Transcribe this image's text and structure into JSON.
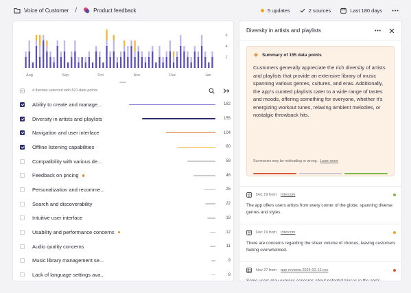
{
  "breadcrumb": {
    "workspace": "Voice of Customer",
    "separator": "/",
    "project": "Product feedback"
  },
  "header": {
    "updates_label": "5 updates",
    "sources_label": "2 sources",
    "range_label": "Last 180 days",
    "update_dot_color": "#f0a51e"
  },
  "chart_data": {
    "type": "bar",
    "x_tick_labels": [
      "Aug",
      "Sep",
      "Oct",
      "Nov",
      "Dec",
      "Jan"
    ],
    "y_tick_labels": [
      "6",
      "4",
      "2"
    ],
    "ylim": [
      0,
      7
    ],
    "series_colors": [
      "#5a4fb8",
      "#c0b6ef",
      "#f3b43a",
      "#e07a3a"
    ],
    "bars": [
      [
        2,
        1,
        0,
        0
      ],
      [
        3,
        2,
        0,
        0
      ],
      [
        1,
        0,
        0,
        0
      ],
      [
        4,
        1,
        1,
        0
      ],
      [
        2,
        2,
        2,
        0
      ],
      [
        5,
        1,
        0,
        0
      ],
      [
        3,
        1,
        1,
        0
      ],
      [
        2,
        1,
        0,
        0
      ],
      [
        1,
        1,
        0,
        0
      ],
      [
        4,
        1,
        0,
        0
      ],
      [
        2,
        1,
        0,
        0
      ],
      [
        3,
        2,
        0,
        0
      ],
      [
        1,
        0,
        0,
        0
      ],
      [
        2,
        1,
        0,
        0
      ],
      [
        3,
        2,
        0,
        0
      ],
      [
        1,
        1,
        0,
        0
      ],
      [
        2,
        0,
        0,
        0
      ],
      [
        1,
        1,
        0,
        0
      ],
      [
        2,
        1,
        0,
        0
      ],
      [
        1,
        0,
        0,
        0
      ],
      [
        3,
        1,
        0,
        0
      ],
      [
        2,
        1,
        0,
        0
      ],
      [
        1,
        0,
        0,
        0
      ],
      [
        4,
        1,
        2,
        0
      ],
      [
        2,
        1,
        0,
        0
      ],
      [
        3,
        2,
        1,
        0
      ],
      [
        1,
        1,
        0,
        0
      ],
      [
        2,
        1,
        0,
        0
      ],
      [
        3,
        1,
        1,
        0
      ],
      [
        2,
        2,
        0,
        0
      ],
      [
        4,
        1,
        0,
        0
      ],
      [
        2,
        1,
        2,
        0
      ],
      [
        3,
        1,
        0,
        0
      ],
      [
        2,
        1,
        0,
        0
      ],
      [
        1,
        1,
        0,
        0
      ],
      [
        2,
        1,
        0,
        0
      ],
      [
        3,
        1,
        0,
        0
      ],
      [
        1,
        0,
        0,
        0
      ],
      [
        2,
        2,
        0,
        0
      ],
      [
        1,
        1,
        0,
        0
      ],
      [
        2,
        1,
        0,
        0
      ],
      [
        3,
        2,
        0,
        0
      ],
      [
        1,
        1,
        1,
        0
      ],
      [
        2,
        1,
        0,
        0
      ],
      [
        4,
        2,
        0,
        0
      ],
      [
        3,
        1,
        0,
        0
      ],
      [
        2,
        1,
        0,
        0
      ],
      [
        1,
        1,
        0,
        0
      ],
      [
        3,
        1,
        0,
        0
      ],
      [
        2,
        1,
        0,
        0
      ],
      [
        4,
        2,
        0,
        0
      ],
      [
        2,
        1,
        0,
        0
      ],
      [
        1,
        0,
        0,
        0
      ],
      [
        2,
        1,
        0,
        0
      ]
    ]
  },
  "themes": {
    "selected_summary": "4 themes selected with 521 data points",
    "items": [
      {
        "label": "Ability to create and manage...",
        "count": "182",
        "value": 182,
        "checked": true,
        "flag": false,
        "bar_color": "#8a7fd8"
      },
      {
        "label": "Diversity in artists and playlists",
        "count": "155",
        "value": 155,
        "checked": true,
        "flag": false,
        "bar_color": "#2a2a70"
      },
      {
        "label": "Navigation and user interface",
        "count": "104",
        "value": 104,
        "checked": true,
        "flag": false,
        "bar_color": "#e07a3a"
      },
      {
        "label": "Offline listening capabilities",
        "count": "80",
        "value": 80,
        "checked": true,
        "flag": false,
        "bar_color": "#f3b43a"
      },
      {
        "label": "Compatibility with various de...",
        "count": "59",
        "value": 59,
        "checked": false,
        "flag": false,
        "bar_color": "#c9c9cf"
      },
      {
        "label": "Feedback on pricing",
        "count": "46",
        "value": 46,
        "checked": false,
        "flag": true,
        "bar_color": "#c9c9cf"
      },
      {
        "label": "Personalization and recomme...",
        "count": "25",
        "value": 25,
        "checked": false,
        "flag": false,
        "bar_color": "#c9c9cf"
      },
      {
        "label": "Search and discoverability",
        "count": "22",
        "value": 22,
        "checked": false,
        "flag": false,
        "bar_color": "#c9c9cf"
      },
      {
        "label": "Intuitive user interface",
        "count": "18",
        "value": 18,
        "checked": false,
        "flag": false,
        "bar_color": "#c9c9cf"
      },
      {
        "label": "Usability and performance concerns",
        "count": "12",
        "value": 12,
        "checked": false,
        "flag": true,
        "bar_color": "#c9c9cf"
      },
      {
        "label": "Audio quality concerns",
        "count": "11",
        "value": 11,
        "checked": false,
        "flag": false,
        "bar_color": "#c9c9cf"
      },
      {
        "label": "Music library management se...",
        "count": "9",
        "value": 9,
        "checked": false,
        "flag": false,
        "bar_color": "#c9c9cf"
      },
      {
        "label": "Lack of language settings ava...",
        "count": "8",
        "value": 8,
        "checked": false,
        "flag": false,
        "bar_color": "#c9c9cf"
      }
    ]
  },
  "detail": {
    "title": "Diversity in artists and playlists",
    "summary_title": "Summary of 155 data points",
    "summary_text": "Customers generally appreciate the rich diversity of artists and playlists that provide an extensive library of music spanning various genres, cultures, and eras. Additionally, the app's curated playlists cater to a wide range of tastes and moods, offering something for everyone, whether it's energizing workout tunes, relaxing ambient melodies, or nostalgic throwback hits.",
    "disclaimer": "Summaries may be misleading or wrong.",
    "learn_more": "Learn more",
    "sentiment_colors": [
      "#d9573a",
      "#c9c9cf",
      "#7bb94a"
    ],
    "cards": [
      {
        "date": "Dec 19 from",
        "source": "Intercom",
        "text": "The app offers users artists from every corner of the globe, spanning diverse genres and styles.",
        "status_color": "#7bb94a"
      },
      {
        "date": "Dec 19 from",
        "source": "Intercom",
        "text": "There are concerns regarding the sheer volume of choices, leaving customers feeling overwhelmed.",
        "status_color": "#f0a51e"
      },
      {
        "date": "Nov 27 from",
        "source": "app-reviews-2024-02-12.csv",
        "text": "Some users may express concerns about potential biases in the app's recommendation algorithms, fearing that certain",
        "status_color": "#d9573a"
      }
    ]
  }
}
